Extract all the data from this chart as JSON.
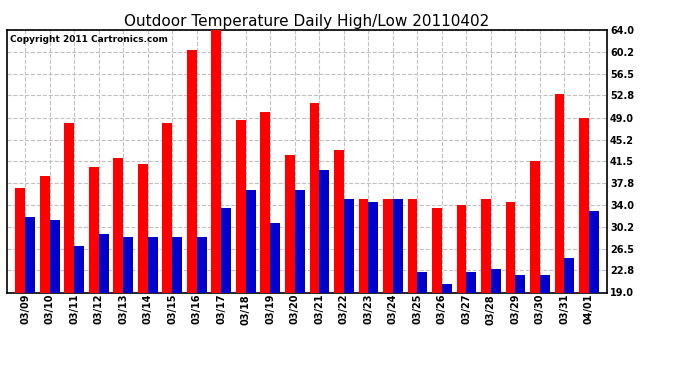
{
  "title": "Outdoor Temperature Daily High/Low 20110402",
  "copyright": "Copyright 2011 Cartronics.com",
  "dates": [
    "03/09",
    "03/10",
    "03/11",
    "03/12",
    "03/13",
    "03/14",
    "03/15",
    "03/16",
    "03/17",
    "03/18",
    "03/19",
    "03/20",
    "03/21",
    "03/22",
    "03/23",
    "03/24",
    "03/25",
    "03/26",
    "03/27",
    "03/28",
    "03/29",
    "03/30",
    "03/31",
    "04/01"
  ],
  "highs": [
    37.0,
    39.0,
    48.0,
    40.5,
    42.0,
    41.0,
    48.0,
    60.5,
    64.0,
    48.5,
    50.0,
    42.5,
    51.5,
    43.5,
    35.0,
    35.0,
    35.0,
    33.5,
    34.0,
    35.0,
    34.5,
    41.5,
    53.0,
    49.0
  ],
  "lows": [
    32.0,
    31.5,
    27.0,
    29.0,
    28.5,
    28.5,
    28.5,
    28.5,
    33.5,
    36.5,
    31.0,
    36.5,
    40.0,
    35.0,
    34.5,
    35.0,
    22.5,
    20.5,
    22.5,
    23.0,
    22.0,
    22.0,
    25.0,
    33.0
  ],
  "high_color": "#ff0000",
  "low_color": "#0000cc",
  "bg_color": "#ffffff",
  "plot_bg": "#ffffff",
  "grid_color": "#c0c0c0",
  "ylim_min": 19.0,
  "ylim_max": 64.0,
  "yticks": [
    19.0,
    22.8,
    26.5,
    30.2,
    34.0,
    37.8,
    41.5,
    45.2,
    49.0,
    52.8,
    56.5,
    60.2,
    64.0
  ],
  "bar_width": 0.4,
  "title_fontsize": 11,
  "tick_fontsize": 7,
  "copyright_fontsize": 6.5
}
